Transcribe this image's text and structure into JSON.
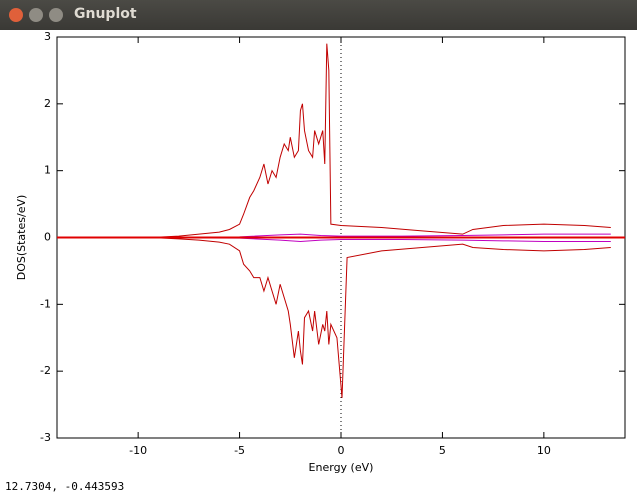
{
  "window": {
    "title": "Gnuplot"
  },
  "status": "12.7304, -0.443593",
  "chart_data": {
    "type": "line",
    "xlabel": "Energy (eV)",
    "ylabel": "DOS(States/eV)",
    "xlim": [
      -14,
      14
    ],
    "ylim": [
      -3,
      3
    ],
    "xticks": [
      -10,
      -5,
      0,
      5,
      10
    ],
    "yticks": [
      -3,
      -2,
      -1,
      0,
      1,
      2,
      3
    ],
    "zero_axis_color": "#e00000",
    "vlines": [
      0
    ],
    "series": [
      {
        "color": "#c00000",
        "x": [
          -14,
          -10,
          -9,
          -8,
          -7,
          -6,
          -5.5,
          -5,
          -4.8,
          -4.5,
          -4.3,
          -4,
          -3.8,
          -3.6,
          -3.4,
          -3.2,
          -3,
          -2.8,
          -2.6,
          -2.5,
          -2.3,
          -2.1,
          -2,
          -1.9,
          -1.8,
          -1.6,
          -1.4,
          -1.3,
          -1.1,
          -0.9,
          -0.8,
          -0.7,
          -0.6,
          -0.5,
          0,
          2,
          4,
          6,
          6.5,
          8,
          10,
          12,
          13.3
        ],
        "values": [
          0,
          0,
          0.005,
          0.02,
          0.05,
          0.08,
          0.12,
          0.2,
          0.35,
          0.6,
          0.7,
          0.9,
          1.1,
          0.8,
          1.0,
          0.9,
          1.2,
          1.4,
          1.3,
          1.5,
          1.2,
          1.3,
          1.9,
          2.0,
          1.6,
          1.3,
          1.2,
          1.6,
          1.4,
          1.6,
          1.1,
          2.9,
          2.5,
          0.2,
          0.18,
          0.15,
          0.1,
          0.05,
          0.12,
          0.18,
          0.2,
          0.18,
          0.15
        ]
      },
      {
        "color": "#c00000",
        "x": [
          -14,
          -10,
          -9,
          -8,
          -7,
          -6,
          -5.5,
          -5,
          -4.8,
          -4.5,
          -4.3,
          -4,
          -3.8,
          -3.6,
          -3.4,
          -3.2,
          -3,
          -2.8,
          -2.6,
          -2.5,
          -2.3,
          -2.1,
          -2,
          -1.9,
          -1.8,
          -1.6,
          -1.4,
          -1.3,
          -1.1,
          -0.9,
          -0.8,
          -0.7,
          -0.6,
          -0.5,
          -0.2,
          0.05,
          0.3,
          2,
          4,
          6,
          6.5,
          8,
          10,
          12,
          13.3
        ],
        "values": [
          0,
          0,
          -0.005,
          -0.02,
          -0.04,
          -0.07,
          -0.1,
          -0.2,
          -0.4,
          -0.5,
          -0.6,
          -0.6,
          -0.8,
          -0.6,
          -0.8,
          -1.0,
          -0.7,
          -0.9,
          -1.1,
          -1.3,
          -1.8,
          -1.4,
          -1.7,
          -1.9,
          -1.2,
          -1.1,
          -1.4,
          -1.1,
          -1.6,
          -1.3,
          -1.4,
          -1.1,
          -1.6,
          -1.3,
          -1.5,
          -2.4,
          -0.3,
          -0.2,
          -0.15,
          -0.1,
          -0.15,
          -0.18,
          -0.2,
          -0.18,
          -0.15
        ]
      },
      {
        "color": "#c000c0",
        "x": [
          -14,
          -8,
          -5,
          -3,
          -2,
          -1,
          0,
          3,
          6,
          8,
          10,
          13.3
        ],
        "values": [
          0,
          0.005,
          0.01,
          0.04,
          0.05,
          0.03,
          0.02,
          0.02,
          0.03,
          0.04,
          0.05,
          0.05
        ]
      },
      {
        "color": "#c000c0",
        "x": [
          -14,
          -8,
          -5,
          -3,
          -2,
          -1,
          0,
          3,
          6,
          8,
          10,
          13.3
        ],
        "values": [
          0,
          -0.005,
          -0.01,
          -0.04,
          -0.06,
          -0.04,
          -0.03,
          -0.03,
          -0.04,
          -0.05,
          -0.06,
          -0.06
        ]
      }
    ]
  }
}
